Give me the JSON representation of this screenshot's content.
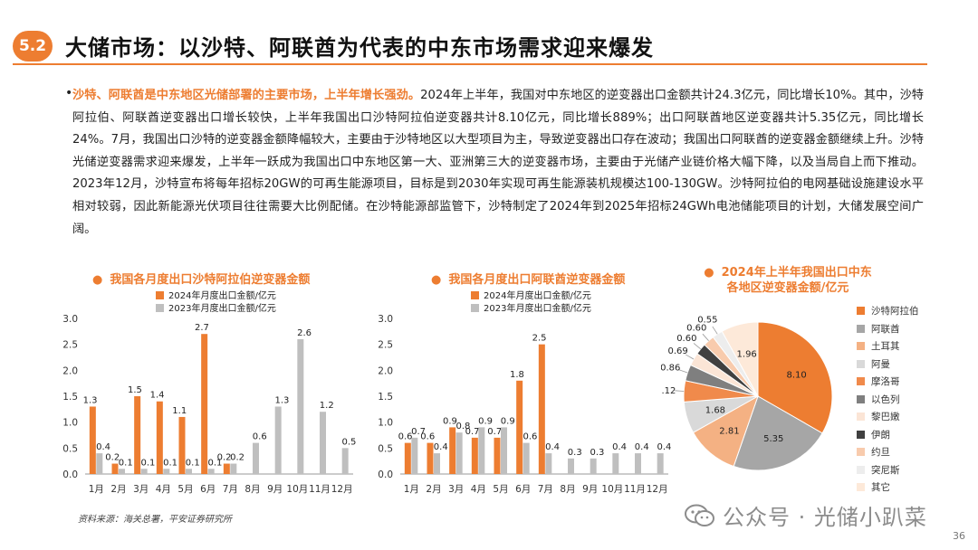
{
  "header": {
    "badge": "5.2",
    "title": "大储市场：以沙特、阿联酋为代表的中东市场需求迎来爆发"
  },
  "body": {
    "bullet": "•",
    "highlight": "沙特、阿联酋是中东地区光储部署的主要市场，上半年增长强劲。",
    "text": "2024年上半年，我国对中东地区的逆变器出口金额共计24.3亿元，同比增长10%。其中，沙特阿拉伯、阿联酋逆变器出口增长较快，上半年我国出口沙特阿拉伯逆变器共计8.10亿元，同比增长889%；出口阿联酋地区逆变器共计5.35亿元，同比增长24%。7月，我国出口沙特的逆变器金额降幅较大，主要由于沙特地区以大型项目为主，导致逆变器出口存在波动；我国出口阿联酋的逆变器金额继续上升。沙特光储逆变器需求迎来爆发，上半年一跃成为我国出口中东地区第一大、亚洲第三大的逆变器市场，主要由于光储产业链价格大幅下降，以及当局自上而下推动。2023年12月，沙特宣布将每年招标20GW的可再生能源项目，目标是到2030年实现可再生能源装机规模达100-130GW。沙特阿拉伯的电网基础设施建设水平相对较弱，因此新能源光伏项目往往需要大比例配储。在沙特能源部监管下，沙特制定了2024年到2025年招标24GWh电池储能项目的计划，大储发展空间广阔。"
  },
  "chart_data": [
    {
      "type": "bar",
      "title": "我国各月度出口沙特阿拉伯逆变器金额",
      "categories": [
        "1月",
        "2月",
        "3月",
        "4月",
        "5月",
        "6月",
        "7月",
        "8月",
        "9月",
        "10月",
        "11月",
        "12月"
      ],
      "series": [
        {
          "name": "2024年月度出口金额/亿元",
          "color": "#ed7d31",
          "values": [
            1.3,
            0.2,
            1.5,
            1.4,
            1.1,
            2.7,
            0.2,
            null,
            null,
            null,
            null,
            null
          ],
          "labels": [
            "1.3",
            "0.2",
            "1.5",
            "1.4",
            "1.1",
            "2.7",
            "0.2",
            "",
            "",
            "",
            "",
            ""
          ]
        },
        {
          "name": "2023年月度出口金额/亿元",
          "color": "#bfbfbf",
          "values": [
            0.4,
            0.1,
            0.1,
            0.1,
            0.1,
            0.1,
            0.2,
            0.6,
            1.3,
            2.6,
            1.2,
            0.5
          ],
          "labels": [
            "0.4",
            "0.1",
            "0.1",
            "0.1",
            "0.1",
            "0.1",
            "0.2",
            "0.6",
            "1.3",
            "2.6",
            "1.2",
            "0.5"
          ]
        }
      ],
      "ylim": [
        0,
        3.0
      ],
      "yticks": [
        "0.0",
        "0.5",
        "1.0",
        "1.5",
        "2.0",
        "2.5",
        "3.0"
      ],
      "title_dot": "●"
    },
    {
      "type": "bar",
      "title": "我国各月度出口阿联酋逆变器金额",
      "categories": [
        "1月",
        "2月",
        "3月",
        "4月",
        "5月",
        "6月",
        "7月",
        "8月",
        "9月",
        "10月",
        "11月",
        "12月"
      ],
      "series": [
        {
          "name": "2024年月度出口金额/亿元",
          "color": "#ed7d31",
          "values": [
            0.6,
            0.6,
            0.9,
            0.7,
            0.7,
            1.8,
            2.5,
            null,
            null,
            null,
            null,
            null
          ],
          "labels": [
            "0.6",
            "0.6",
            "0.9",
            "0.7",
            "0.7",
            "1.8",
            "2.5",
            "",
            "",
            "",
            "",
            ""
          ]
        },
        {
          "name": "2023年月度出口金额/亿元",
          "color": "#bfbfbf",
          "values": [
            0.7,
            0.4,
            0.8,
            0.9,
            0.9,
            0.6,
            0.4,
            0.3,
            0.3,
            0.4,
            0.4,
            0.4
          ],
          "labels": [
            "0.7",
            "0.4",
            "0.8",
            "0.9",
            "0.9",
            "0.6",
            "0.4",
            "0.3",
            "0.3",
            "0.4",
            "0.4",
            "0.4"
          ]
        }
      ],
      "ylim": [
        0,
        3.0
      ],
      "yticks": [
        "0.0",
        "0.5",
        "1.0",
        "1.5",
        "2.0",
        "2.5",
        "3.0"
      ],
      "title_dot": "●"
    },
    {
      "type": "pie",
      "title_line1": "2024年上半年我国出口中东",
      "title_line2": "各地区逆变器金额/亿元",
      "title_dot": "●",
      "slices": [
        {
          "name": "沙特阿拉伯",
          "value": 8.1,
          "label": "8.10",
          "color": "#ed7d31"
        },
        {
          "name": "阿联酋",
          "value": 5.35,
          "label": "5.35",
          "color": "#a6a6a6"
        },
        {
          "name": "土耳其",
          "value": 2.81,
          "label": "2.81",
          "color": "#f4b183"
        },
        {
          "name": "阿曼",
          "value": 1.68,
          "label": "1.68",
          "color": "#d9d9d9"
        },
        {
          "name": "摩洛哥",
          "value": 1.12,
          "label": "1.12",
          "color": "#f08a4b"
        },
        {
          "name": "以色列",
          "value": 0.86,
          "label": "0.86",
          "color": "#7f7f7f"
        },
        {
          "name": "黎巴嫩",
          "value": 0.69,
          "label": "0.69",
          "color": "#fbe5d6"
        },
        {
          "name": "伊朗",
          "value": 0.6,
          "label": "0.60",
          "color": "#404040"
        },
        {
          "name": "约旦",
          "value": 0.6,
          "label": "0.60",
          "color": "#f8cbad"
        },
        {
          "name": "突尼斯",
          "value": 0.55,
          "label": "0.55",
          "color": "#ededed"
        },
        {
          "name": "其它",
          "value": 1.96,
          "label": "1.96",
          "color": "#fde9d9"
        }
      ]
    }
  ],
  "footer": {
    "source": "资料来源：海关总署，平安证券研究所",
    "watermark": "公众号 · 光储小趴菜",
    "page": "36"
  }
}
